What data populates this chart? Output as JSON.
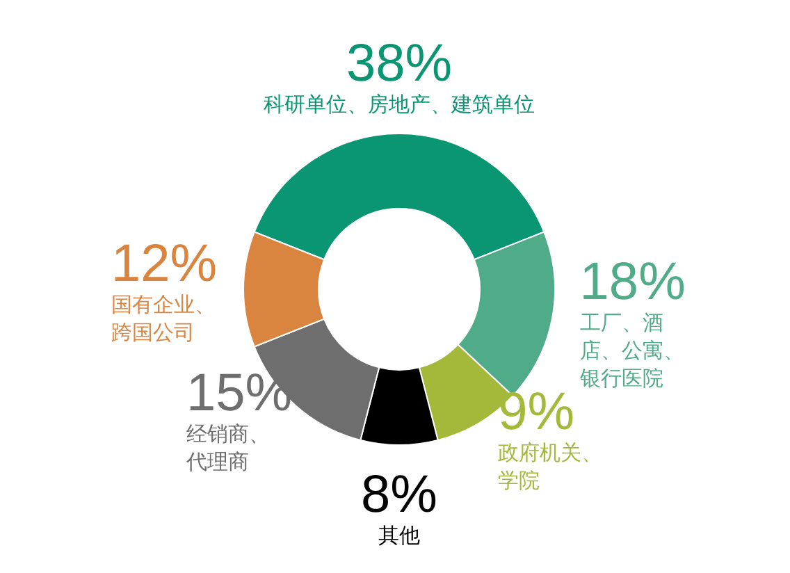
{
  "chart_data": {
    "type": "donut",
    "categories": [
      "科研单位、房地产、建筑单位",
      "工厂、酒店、公寓、银行医院",
      "政府机关、学院",
      "其他",
      "经销商、代理商",
      "国有企业、跨国公司"
    ],
    "values": [
      38,
      18,
      9,
      8,
      15,
      12
    ],
    "value_labels": [
      "38%",
      "18%",
      "9%",
      "8%",
      "15%",
      "12%"
    ],
    "colors": [
      "#0a9673",
      "#4fab88",
      "#a4b83a",
      "#000000",
      "#6e6e6e",
      "#d98540"
    ]
  }
}
